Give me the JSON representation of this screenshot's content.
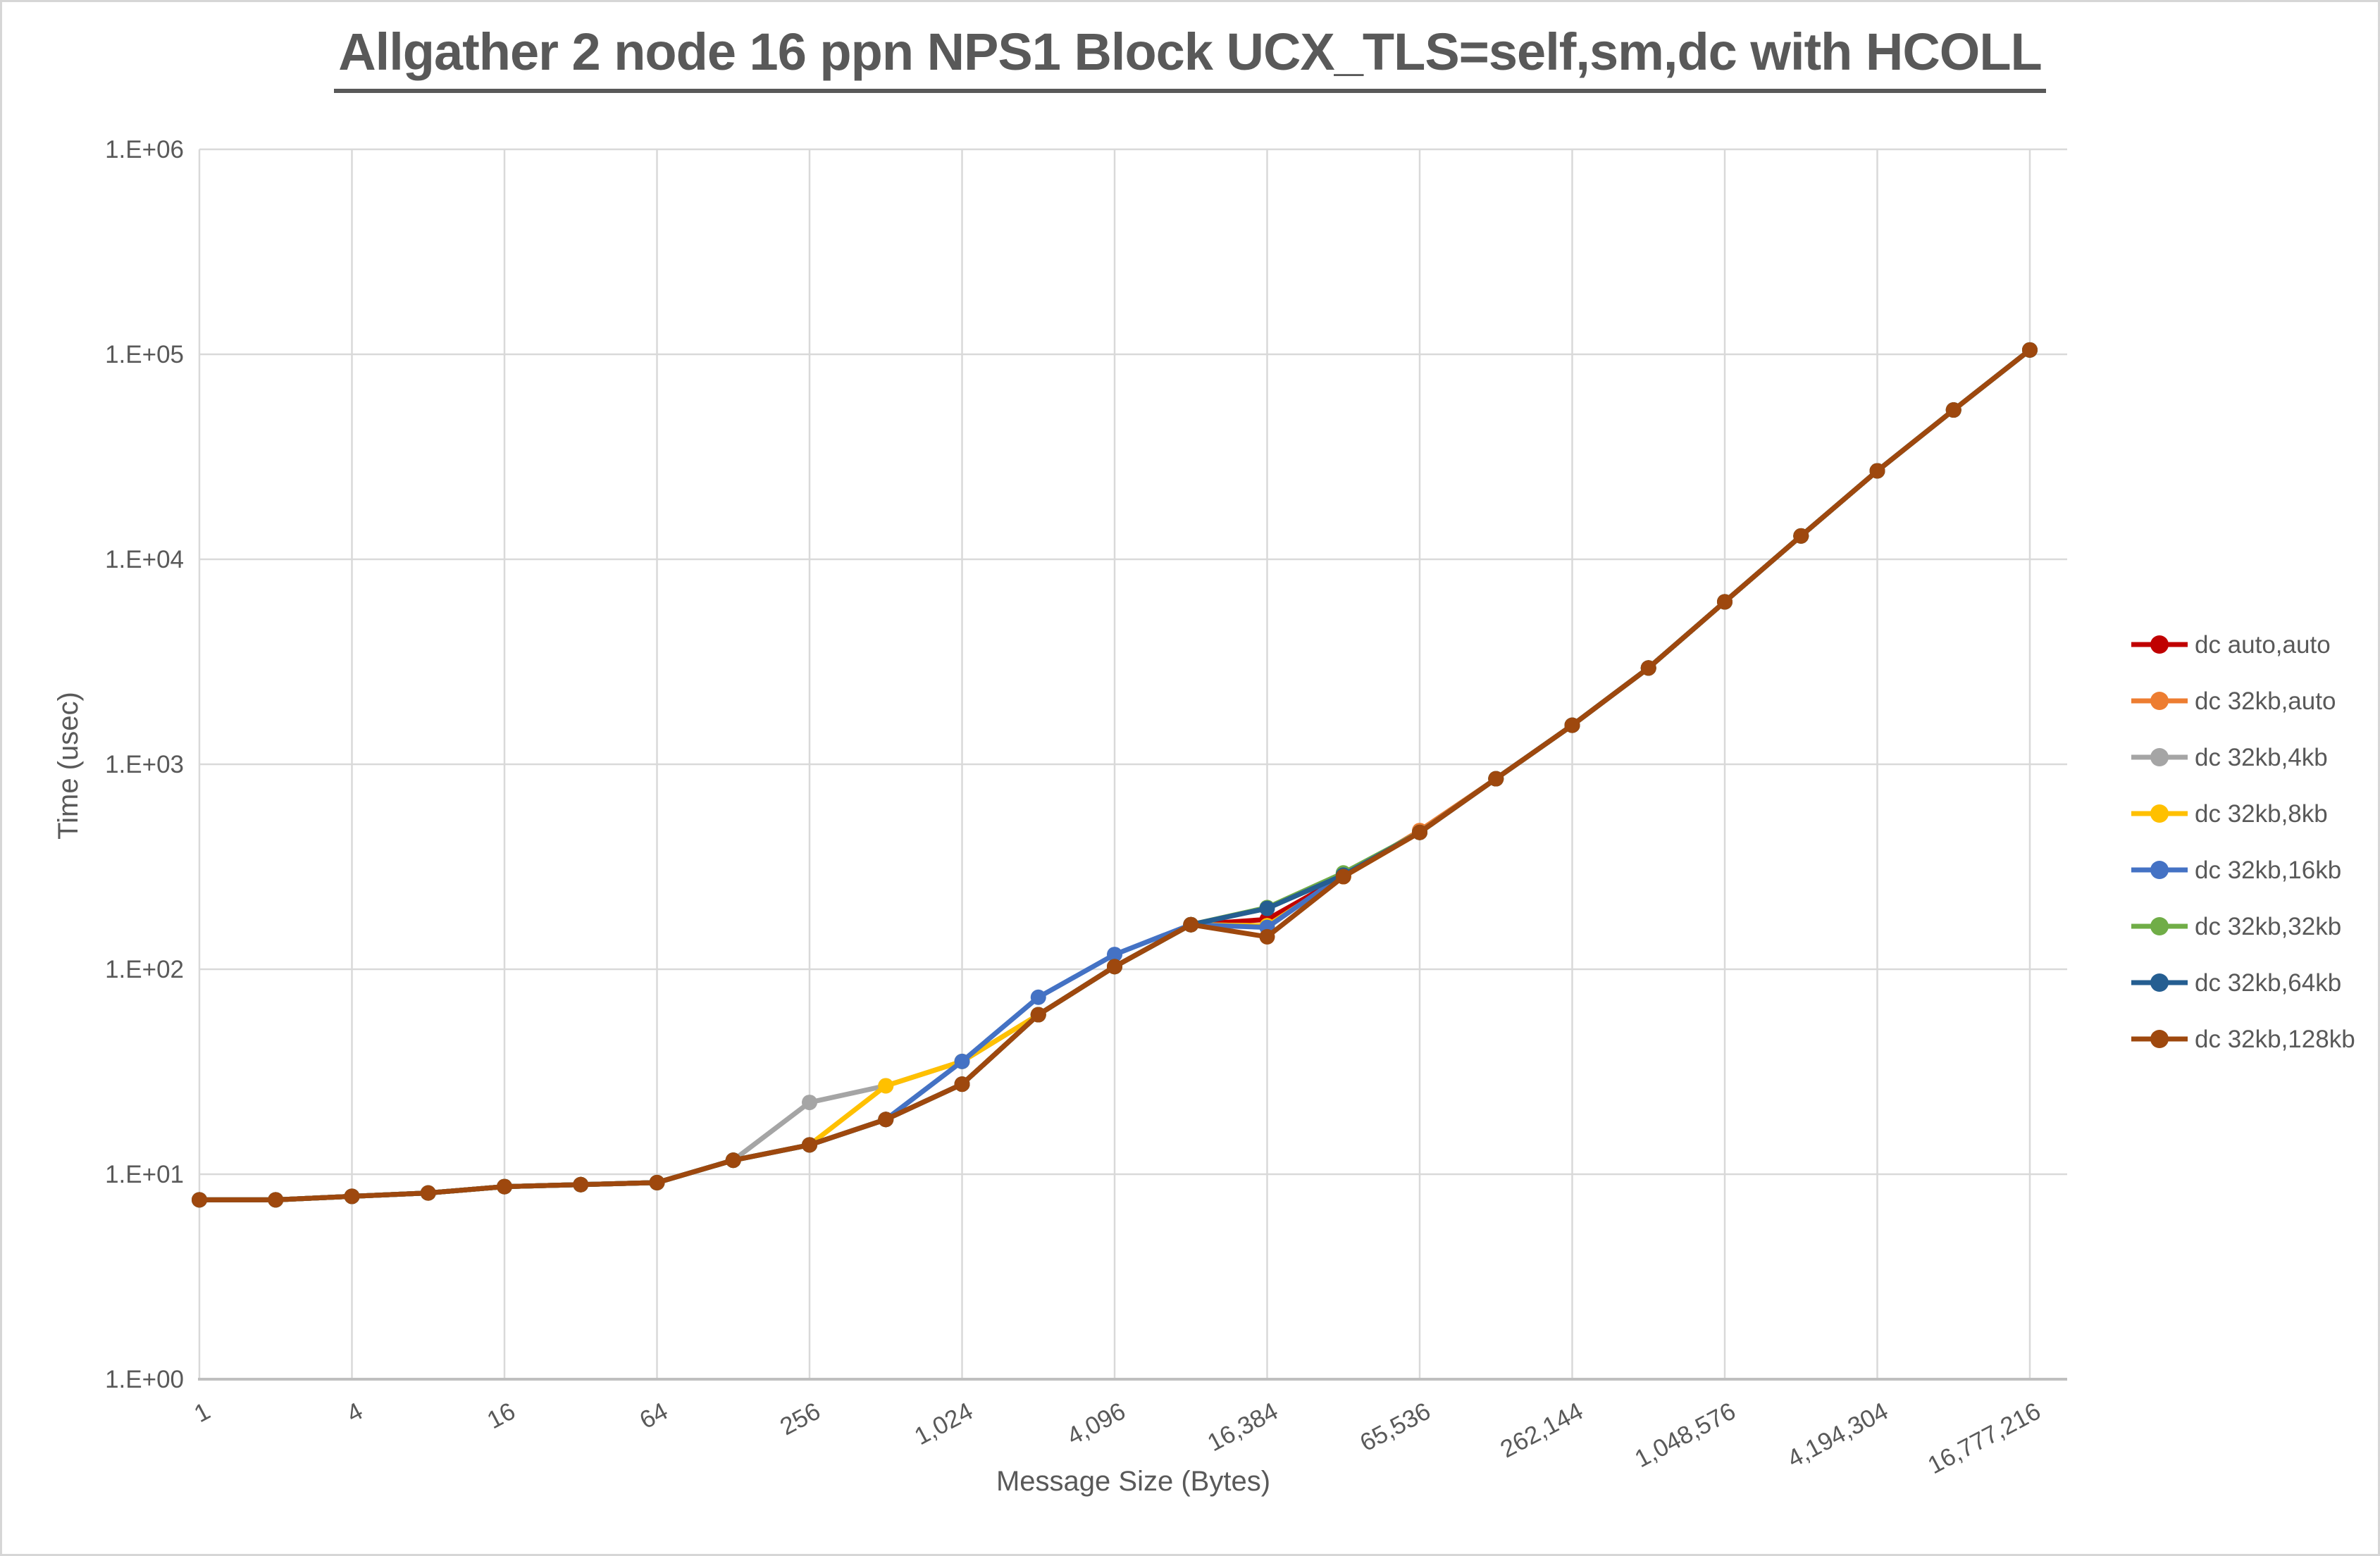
{
  "page": {
    "background": "#FFFFFF",
    "frame_border_color": "#D6D6D6"
  },
  "chart_data": {
    "type": "line",
    "title": "Allgather 2 node 16 ppn NPS1 Block UCX_TLS=self,sm,dc with HCOLL",
    "xlabel": "Message Size (Bytes)",
    "ylabel": "Time (usec)",
    "x_scale": "log2 categories (powers of 2)",
    "y_scale": "log10",
    "ylim": [
      1,
      1000000
    ],
    "grid": true,
    "legend_position": "right",
    "text_color": "#595959",
    "grid_color": "#D9D9D9",
    "axis_color": "#BFBFBF",
    "x": [
      1,
      2,
      4,
      8,
      16,
      32,
      64,
      128,
      256,
      512,
      1024,
      2048,
      4096,
      8192,
      16384,
      32768,
      65536,
      131072,
      262144,
      524288,
      1048576,
      2097152,
      4194304,
      8388608,
      16777216
    ],
    "x_tick_labels": [
      "1",
      "4",
      "16",
      "64",
      "256",
      "1,024",
      "4,096",
      "16,384",
      "65,536",
      "262,144",
      "1,048,576",
      "4,194,304",
      "16,777,216"
    ],
    "y_tick_labels": [
      "1.E+00",
      "1.E+01",
      "1.E+02",
      "1.E+03",
      "1.E+04",
      "1.E+05",
      "1.E+06"
    ],
    "series": [
      {
        "name": "dc auto,auto",
        "color": "#C00000",
        "values": [
          7.5,
          7.5,
          7.8,
          8.1,
          8.7,
          8.9,
          9.1,
          11.7,
          13.9,
          18.5,
          27.5,
          60,
          103,
          165,
          175,
          283,
          465,
          850,
          1550,
          2950,
          6200,
          13000,
          27000,
          53500,
          105000
        ]
      },
      {
        "name": "dc 32kb,auto",
        "color": "#ED7D31",
        "values": [
          7.5,
          7.5,
          7.8,
          8.1,
          8.7,
          8.9,
          9.1,
          11.7,
          13.9,
          18.5,
          27.5,
          60,
          103,
          165,
          163,
          283,
          475,
          850,
          1550,
          2950,
          6200,
          13000,
          27000,
          53500,
          105000
        ]
      },
      {
        "name": "dc 32kb,4kb",
        "color": "#A5A5A5",
        "values": [
          7.5,
          7.5,
          7.8,
          8.1,
          8.7,
          8.9,
          9.1,
          11.7,
          22.4,
          27,
          35.5,
          60,
          103,
          165,
          163,
          283,
          465,
          850,
          1550,
          2950,
          6200,
          13000,
          27000,
          53500,
          105000
        ]
      },
      {
        "name": "dc 32kb,8kb",
        "color": "#FFC000",
        "values": [
          7.5,
          7.5,
          7.8,
          8.1,
          8.7,
          8.9,
          9.1,
          11.7,
          13.9,
          27,
          35.5,
          60,
          103,
          165,
          163,
          283,
          465,
          850,
          1550,
          2950,
          6200,
          13000,
          27000,
          53500,
          105000
        ]
      },
      {
        "name": "dc 32kb,16kb",
        "color": "#4472C4",
        "values": [
          7.5,
          7.5,
          7.8,
          8.1,
          8.7,
          8.9,
          9.1,
          11.7,
          13.9,
          18.5,
          35.5,
          73,
          118,
          165,
          160,
          290,
          465,
          850,
          1550,
          2950,
          6200,
          13000,
          27000,
          53500,
          105000
        ]
      },
      {
        "name": "dc 32kb,32kb",
        "color": "#70AD47",
        "values": [
          7.5,
          7.5,
          7.8,
          8.1,
          8.7,
          8.9,
          9.1,
          11.7,
          13.9,
          18.5,
          27.5,
          60,
          103,
          165,
          200,
          295,
          465,
          850,
          1550,
          2950,
          6200,
          13000,
          27000,
          53500,
          105000
        ]
      },
      {
        "name": "dc 32kb,64kb",
        "color": "#255E91",
        "values": [
          7.5,
          7.5,
          7.8,
          8.1,
          8.7,
          8.9,
          9.1,
          11.7,
          13.9,
          18.5,
          27.5,
          60,
          103,
          165,
          198,
          288,
          465,
          850,
          1550,
          2950,
          6200,
          13000,
          27000,
          53500,
          105000
        ]
      },
      {
        "name": "dc 32kb,128kb",
        "color": "#9E480E",
        "values": [
          7.5,
          7.5,
          7.8,
          8.1,
          8.7,
          8.9,
          9.1,
          11.7,
          13.9,
          18.5,
          27.5,
          60,
          103,
          165,
          144,
          283,
          465,
          850,
          1550,
          2950,
          6200,
          13000,
          27000,
          53500,
          105000
        ]
      }
    ]
  }
}
